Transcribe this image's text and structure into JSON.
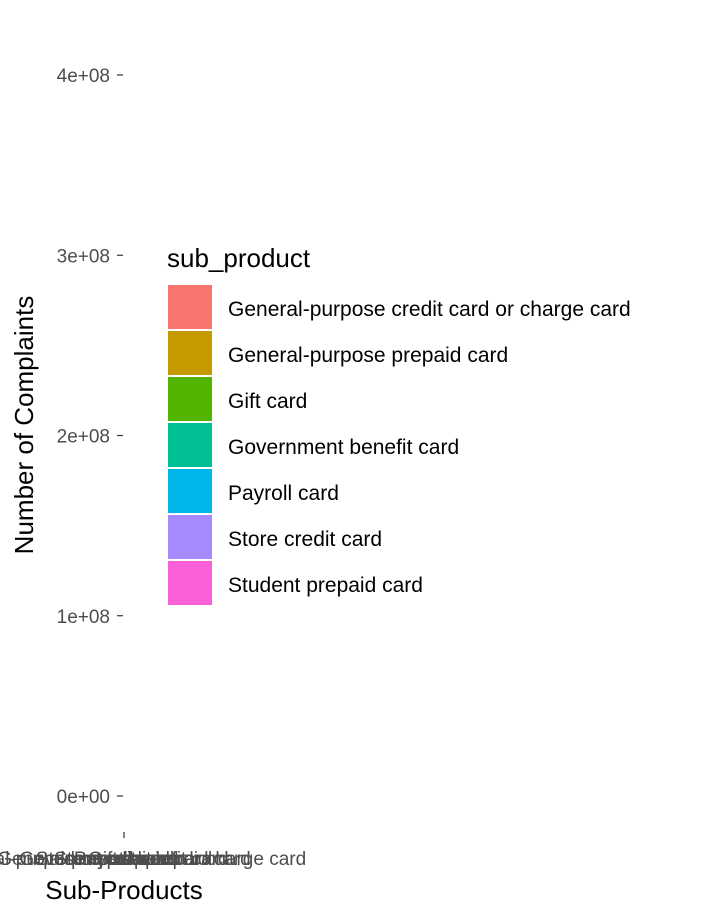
{
  "chart_data": {
    "type": "bar",
    "title": "",
    "xlabel": "Sub-Products",
    "ylabel": "Number of Complaints",
    "ylim": [
      0,
      420000000
    ],
    "y_ticks": [
      {
        "value": 0,
        "label": "0e+00"
      },
      {
        "value": 100000000,
        "label": "1e+08"
      },
      {
        "value": 200000000,
        "label": "2e+08"
      },
      {
        "value": 300000000,
        "label": "3e+08"
      },
      {
        "value": 400000000,
        "label": "4e+08"
      }
    ],
    "categories": [
      "General-purpose credit card or charge card",
      "General-purpose prepaid card",
      "Gift card",
      "Government benefit card",
      "Payroll card",
      "Store credit card",
      "Student prepaid card"
    ],
    "values": [
      null,
      null,
      null,
      null,
      null,
      null,
      null
    ],
    "legend": {
      "title": "sub_product",
      "position": "center",
      "items": [
        {
          "label": "General-purpose credit card or charge card",
          "color": "#F8766D"
        },
        {
          "label": "General-purpose prepaid card",
          "color": "#C49A00"
        },
        {
          "label": "Gift card",
          "color": "#53B400"
        },
        {
          "label": "Government benefit card",
          "color": "#00C094"
        },
        {
          "label": "Payroll card",
          "color": "#00B6EB"
        },
        {
          "label": "Store credit card",
          "color": "#A58AFF"
        },
        {
          "label": "Student prepaid card",
          "color": "#FB61D7"
        }
      ]
    },
    "grid": false,
    "background": "#ffffff"
  }
}
